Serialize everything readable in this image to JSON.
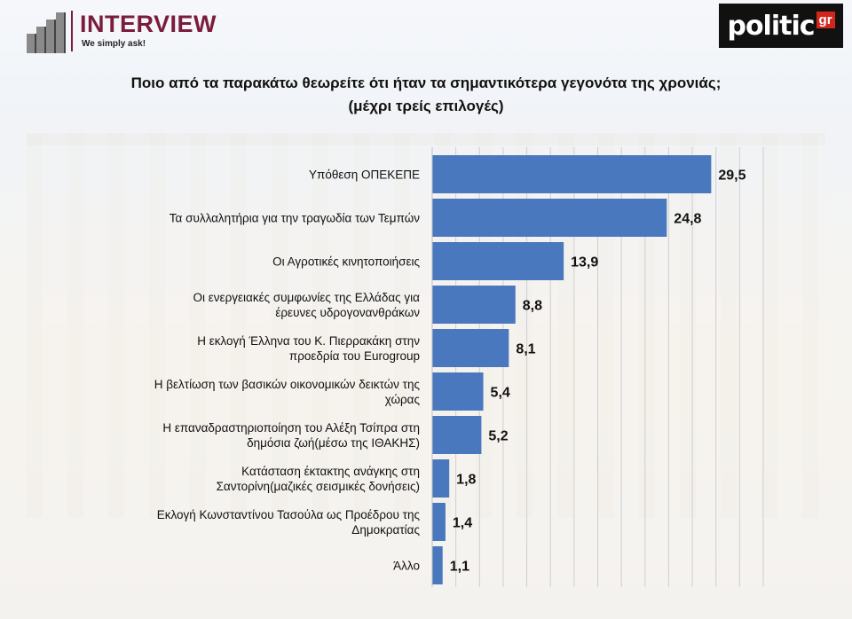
{
  "header": {
    "brand_title": "INTERVIEW",
    "brand_tagline": "We simply ask!",
    "publisher_word": "politic",
    "publisher_suffix": "gr"
  },
  "colors": {
    "bar": "#4a78bf",
    "brand": "#7b1d3a",
    "grid": "#cfcfcf"
  },
  "chart_data": {
    "type": "bar",
    "orientation": "horizontal",
    "title": "Ποιο από τα παρακάτω θεωρείτε ότι ήταν τα σημαντικότερα γεγονότα της χρονιάς;",
    "subtitle": "(μέχρι τρείς επιλογές)",
    "categories": [
      [
        "Υπόθεση ΟΠΕΚΕΠΕ"
      ],
      [
        "Τα συλλαλητήρια για την τραγωδία των Τεμπών"
      ],
      [
        "Οι Αγροτικές κινητοποιήσεις"
      ],
      [
        "Οι ενεργειακές συμφωνίες της Ελλάδας για",
        "έρευνες υδρογονανθράκων"
      ],
      [
        "Η εκλογή Έλληνα του Κ. Πιερρακάκη στην",
        "προεδρία του Eurogroup"
      ],
      [
        "Η βελτίωση των βασικών οικονομικών δεικτών της",
        "χώρας"
      ],
      [
        "Η επαναδραστηριοποίηση του Αλέξη Τσίπρα στη",
        "δημόσια ζωή(μέσω της ΙΘΑΚΗΣ)"
      ],
      [
        "Κατάσταση έκτακτης ανάγκης στη",
        "Σαντορίνη(μαζικές σεισμικές δονήσεις)"
      ],
      [
        "Εκλογή Κωνσταντίνου Τασούλα ως Προέδρου της",
        "Δημοκρατίας"
      ],
      [
        "Άλλο"
      ]
    ],
    "values": [
      29.5,
      24.8,
      13.9,
      8.8,
      8.1,
      5.4,
      5.2,
      1.8,
      1.4,
      1.1
    ],
    "value_labels": [
      "29,5",
      "24,8",
      "13,9",
      "8,8",
      "8,1",
      "5,4",
      "5,2",
      "1,8",
      "1,4",
      "1,1"
    ],
    "xlim": [
      0,
      35
    ],
    "grid": true
  }
}
